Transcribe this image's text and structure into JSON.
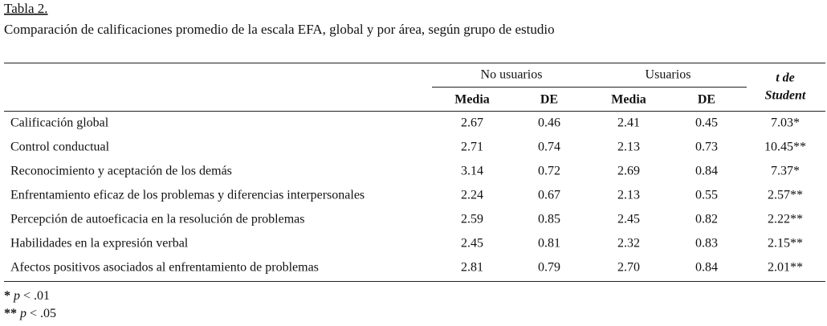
{
  "header": {
    "title": "Tabla 2.",
    "subtitle": "Comparación de calificaciones promedio de la escala EFA, global y por área, según grupo de estudio"
  },
  "table": {
    "groups": [
      "No usuarios",
      "Usuarios"
    ],
    "test_header": [
      "t de",
      "Student"
    ],
    "columns": [
      "Media",
      "DE",
      "Media",
      "DE"
    ],
    "rows": [
      [
        "Calificación global",
        "2.67",
        "0.46",
        "2.41",
        "0.45",
        "7.03*"
      ],
      [
        "Control conductual",
        "2.71",
        "0.74",
        "2.13",
        "0.73",
        "10.45**"
      ],
      [
        "Reconocimiento y aceptación de los demás",
        "3.14",
        "0.72",
        "2.69",
        "0.84",
        "7.37*"
      ],
      [
        "Enfrentamiento eficaz de los problemas y diferencias interpersonales",
        "2.24",
        "0.67",
        "2.13",
        "0.55",
        "2.57**"
      ],
      [
        "Percepción de autoeficacia en la resolución de problemas",
        "2.59",
        "0.85",
        "2.45",
        "0.82",
        "2.22**"
      ],
      [
        "Habilidades en la expresión verbal",
        "2.45",
        "0.81",
        "2.32",
        "0.83",
        "2.15**"
      ],
      [
        "Afectos positivos asociados al enfrentamiento de problemas",
        "2.81",
        "0.79",
        "2.70",
        "0.84",
        "2.01**"
      ]
    ]
  },
  "footnotes": [
    {
      "mark": "*",
      "symbol": "p",
      "text": "< .01"
    },
    {
      "mark": "**",
      "symbol": "p",
      "text": "< .05"
    }
  ]
}
